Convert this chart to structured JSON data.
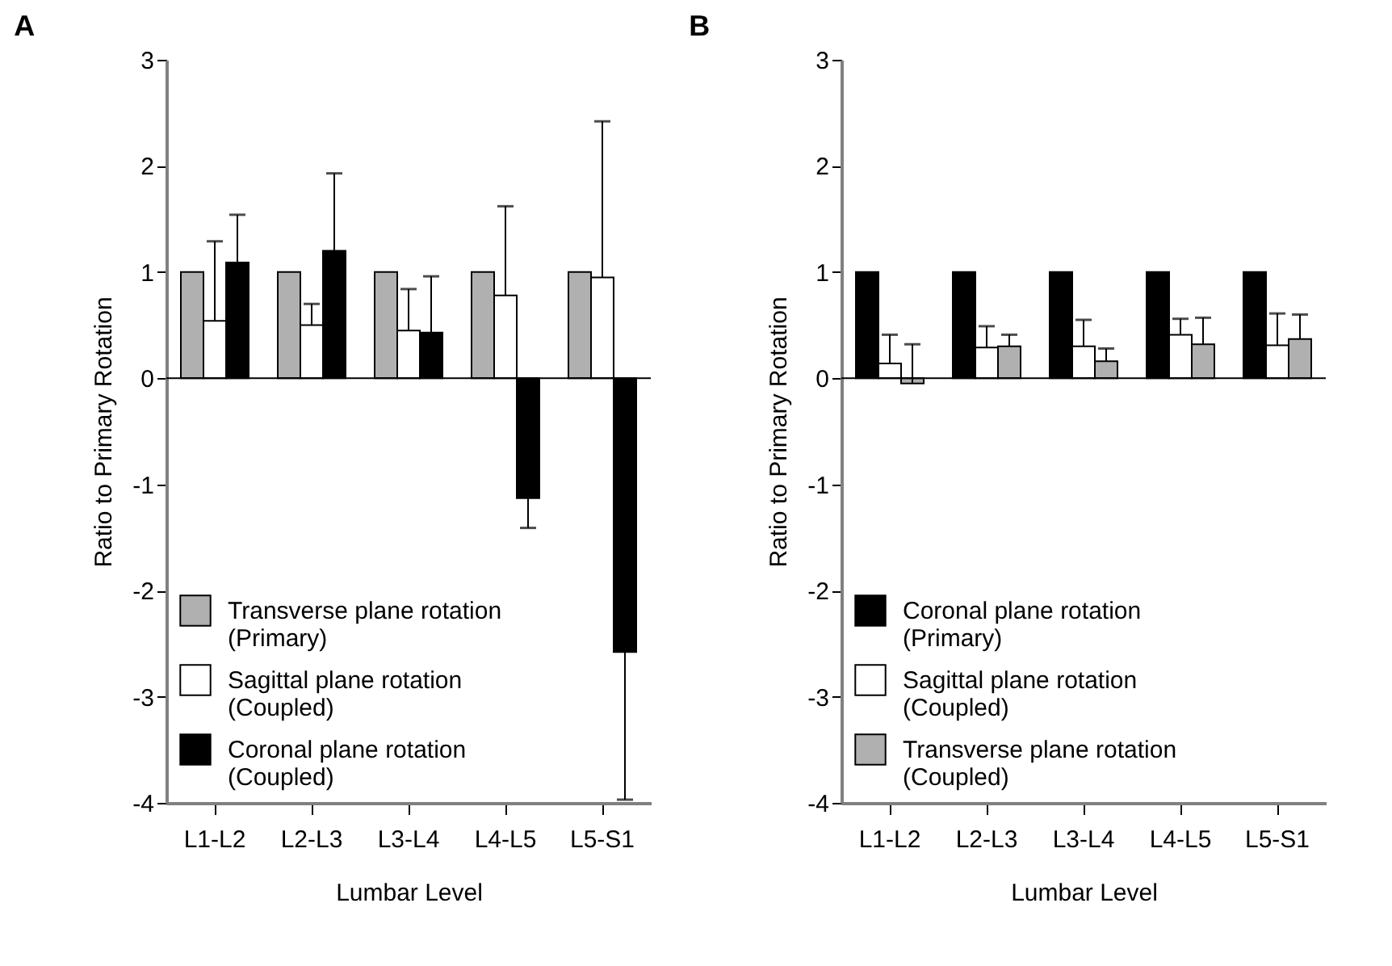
{
  "chart_data": [
    {
      "type": "bar",
      "title": "A",
      "xlabel": "Lumbar Level",
      "ylabel": "Ratio to Primary Rotation",
      "categories": [
        "L1-L2",
        "L2-L3",
        "L3-L4",
        "L4-L5",
        "L5-S1"
      ],
      "ylim": [
        -4,
        3
      ],
      "yticks": [
        -4,
        -3,
        -2,
        -1,
        0,
        1,
        2,
        3
      ],
      "grid": false,
      "legend": "bottom left",
      "ref_lines": [
        {
          "axis": "y",
          "value": 0,
          "color": "#000000"
        }
      ],
      "series": [
        {
          "name": "Transverse plane rotation\n(Primary)",
          "color": "#b0b0b0",
          "values": [
            1,
            1,
            1,
            1,
            1
          ]
        },
        {
          "name": "Sagittal plane rotation\n(Coupled)",
          "color": "#ffffff",
          "values": [
            0.54,
            0.5,
            0.45,
            0.78,
            0.95
          ],
          "errors": [
            [
              0.54,
              1.29
            ],
            [
              0.5,
              0.7
            ],
            [
              0.45,
              0.84
            ],
            [
              0.78,
              1.62
            ],
            [
              0.95,
              2.42
            ]
          ]
        },
        {
          "name": "Coronal plane rotation\n(Coupled)",
          "color": "#000000",
          "values": [
            1.09,
            1.2,
            0.43,
            -1.13,
            -2.58
          ],
          "errors": [
            [
              1.09,
              1.54
            ],
            [
              1.2,
              1.93
            ],
            [
              0.43,
              0.96
            ],
            [
              -1.41,
              -1.13
            ],
            [
              -3.97,
              -2.58
            ]
          ]
        }
      ]
    },
    {
      "type": "bar",
      "title": "B",
      "xlabel": "Lumbar Level",
      "ylabel": "Ratio to Primary Rotation",
      "categories": [
        "L1-L2",
        "L2-L3",
        "L3-L4",
        "L4-L5",
        "L5-S1"
      ],
      "ylim": [
        -4,
        3
      ],
      "yticks": [
        -4,
        -3,
        -2,
        -1,
        0,
        1,
        2,
        3
      ],
      "grid": false,
      "legend": "bottom left",
      "ref_lines": [
        {
          "axis": "y",
          "value": 0,
          "color": "#000000"
        }
      ],
      "series": [
        {
          "name": "Coronal plane rotation\n(Primary)",
          "color": "#000000",
          "values": [
            1,
            1,
            1,
            1,
            1
          ]
        },
        {
          "name": "Sagittal plane rotation\n(Coupled)",
          "color": "#ffffff",
          "values": [
            0.14,
            0.29,
            0.3,
            0.41,
            0.31
          ],
          "errors": [
            [
              0.14,
              0.41
            ],
            [
              0.29,
              0.49
            ],
            [
              0.3,
              0.55
            ],
            [
              0.41,
              0.56
            ],
            [
              0.31,
              0.61
            ]
          ]
        },
        {
          "name": "Transverse plane rotation\n(Coupled)",
          "color": "#b0b0b0",
          "values": [
            -0.05,
            0.3,
            0.16,
            0.32,
            0.37
          ],
          "errors": [
            [
              -0.05,
              0.32
            ],
            [
              0.3,
              0.41
            ],
            [
              0.16,
              0.28
            ],
            [
              0.32,
              0.57
            ],
            [
              0.37,
              0.6
            ]
          ]
        }
      ]
    }
  ]
}
